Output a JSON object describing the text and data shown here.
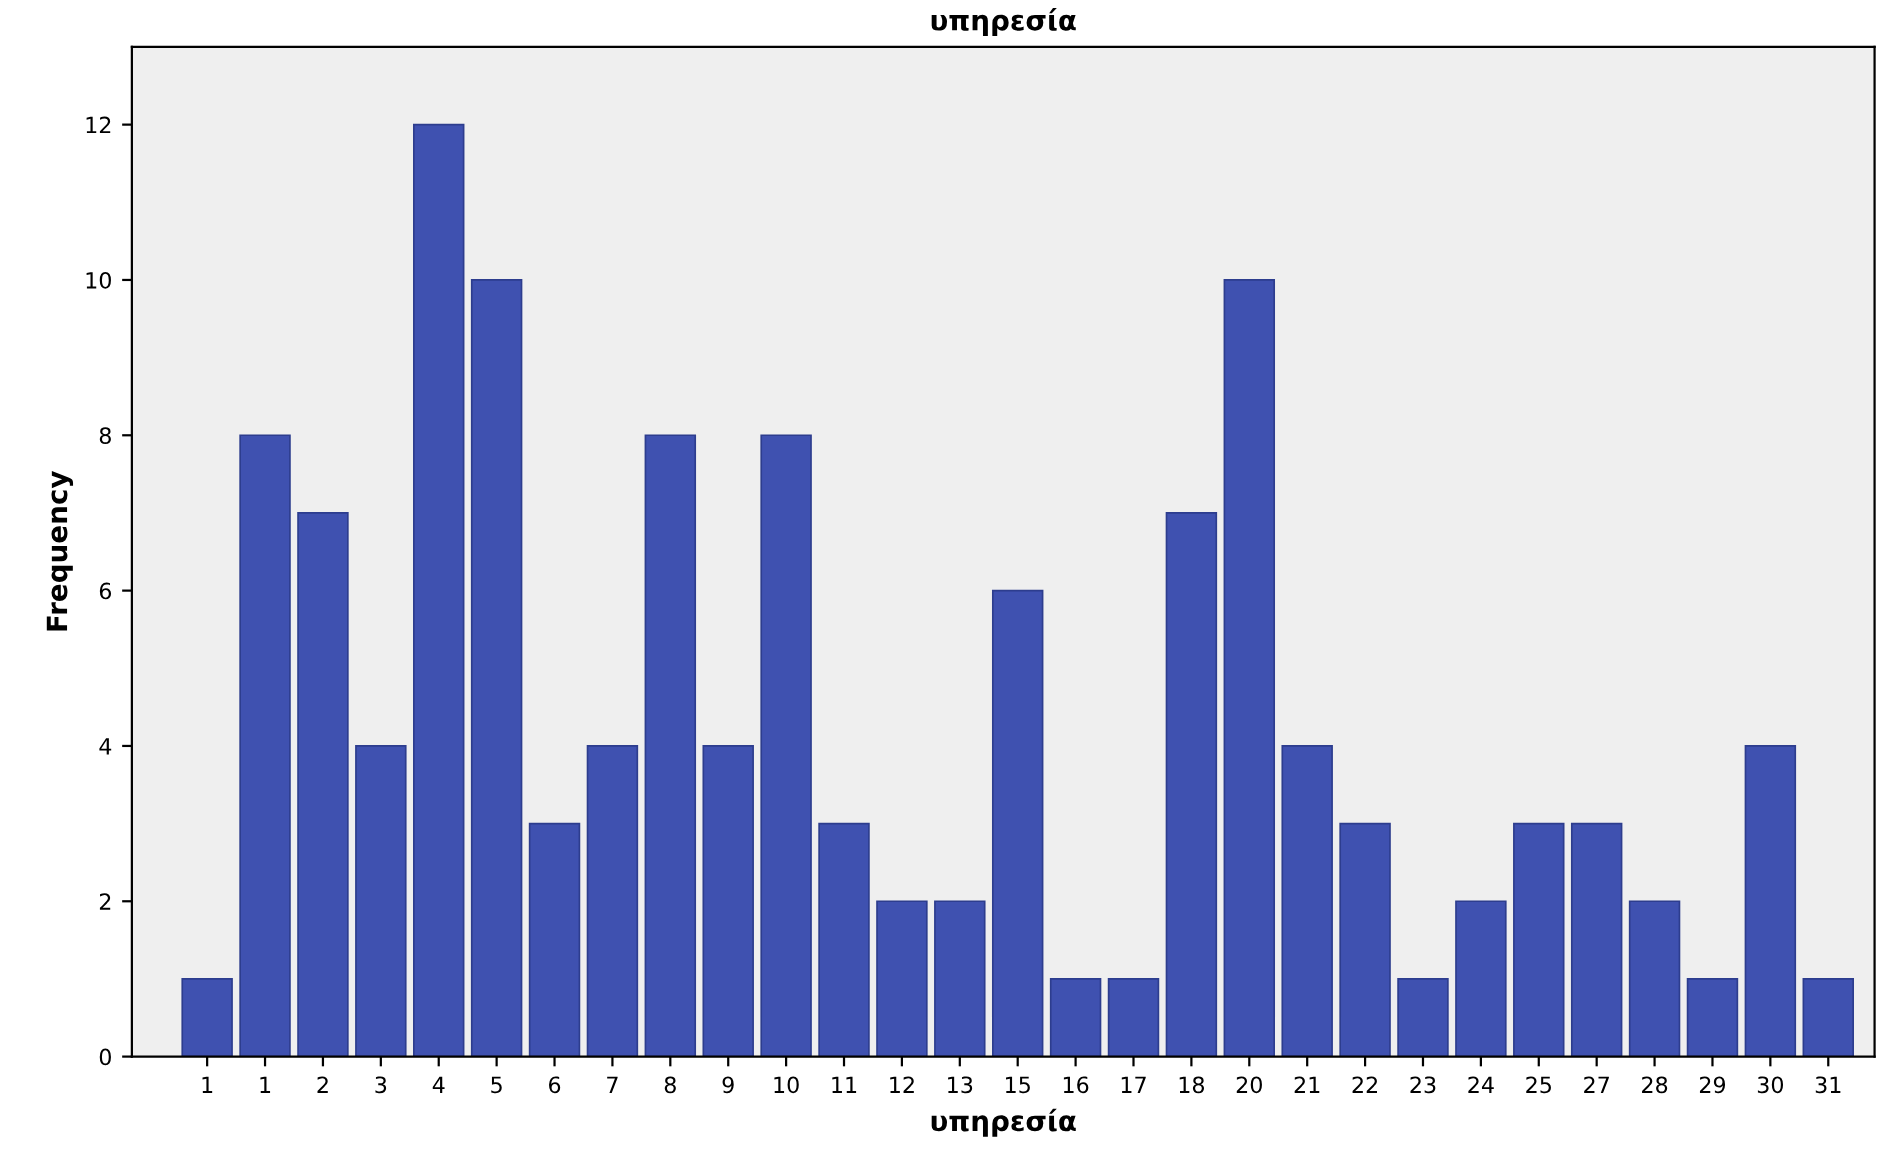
{
  "chart_data": {
    "type": "bar",
    "title": "υπηρεσία",
    "xlabel": "υπηρεσία",
    "ylabel": "Frequency",
    "categories": [
      "1",
      "1",
      "2",
      "3",
      "4",
      "5",
      "6",
      "7",
      "8",
      "9",
      "10",
      "11",
      "12",
      "13",
      "15",
      "16",
      "17",
      "18",
      "20",
      "21",
      "22",
      "23",
      "24",
      "25",
      "27",
      "28",
      "29",
      "30",
      "31"
    ],
    "values": [
      1,
      8,
      7,
      4,
      12,
      10,
      3,
      4,
      8,
      4,
      8,
      3,
      2,
      2,
      6,
      1,
      1,
      7,
      10,
      4,
      3,
      1,
      2,
      3,
      3,
      2,
      1,
      4,
      1
    ],
    "color": "#3f51b0",
    "ylim": [
      0,
      13
    ],
    "yticks": [
      0,
      2,
      4,
      6,
      8,
      10,
      12
    ],
    "grid": false,
    "legend": false
  }
}
